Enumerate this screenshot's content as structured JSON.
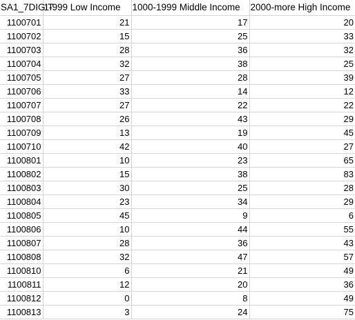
{
  "sheet": {
    "headers": [
      "SA1_7DIGIT",
      "1-999 Low Income",
      "1000-1999 Middle Income",
      "2000-more High Income"
    ],
    "rows": [
      [
        "1100701",
        "21",
        "17",
        "20"
      ],
      [
        "1100702",
        "15",
        "25",
        "33"
      ],
      [
        "1100703",
        "28",
        "36",
        "32"
      ],
      [
        "1100704",
        "32",
        "38",
        "25"
      ],
      [
        "1100705",
        "27",
        "28",
        "39"
      ],
      [
        "1100706",
        "33",
        "14",
        "12"
      ],
      [
        "1100707",
        "27",
        "22",
        "22"
      ],
      [
        "1100708",
        "26",
        "43",
        "29"
      ],
      [
        "1100709",
        "13",
        "19",
        "45"
      ],
      [
        "1100710",
        "42",
        "40",
        "27"
      ],
      [
        "1100801",
        "10",
        "23",
        "65"
      ],
      [
        "1100802",
        "15",
        "38",
        "83"
      ],
      [
        "1100803",
        "30",
        "25",
        "28"
      ],
      [
        "1100804",
        "23",
        "34",
        "29"
      ],
      [
        "1100805",
        "45",
        "9",
        "6"
      ],
      [
        "1100806",
        "10",
        "44",
        "55"
      ],
      [
        "1100807",
        "28",
        "36",
        "43"
      ],
      [
        "1100808",
        "32",
        "47",
        "57"
      ],
      [
        "1100810",
        "6",
        "21",
        "49"
      ],
      [
        "1100811",
        "12",
        "20",
        "36"
      ],
      [
        "1100812",
        "0",
        "8",
        "49"
      ],
      [
        "1100813",
        "3",
        "24",
        "75"
      ]
    ]
  }
}
